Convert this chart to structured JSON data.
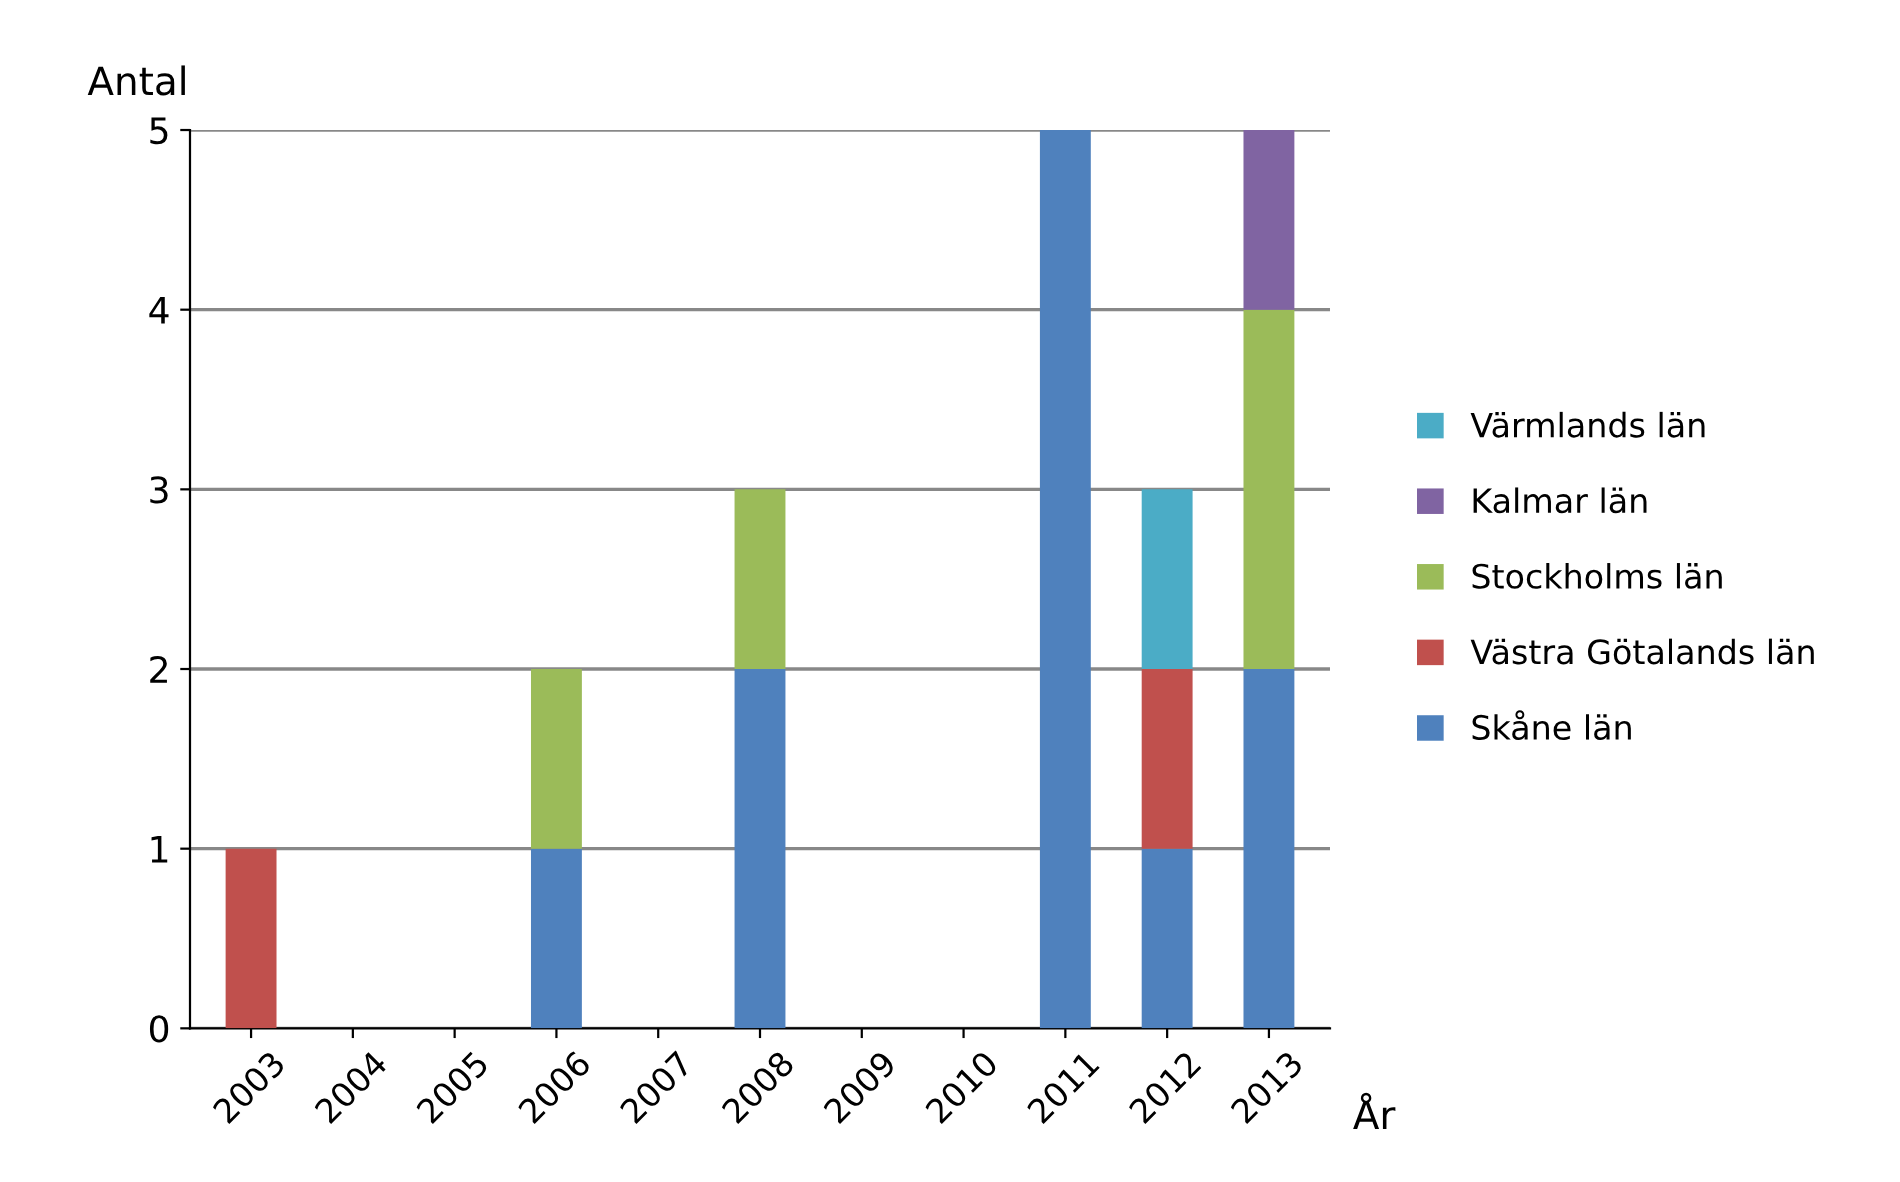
{
  "chart_data": {
    "type": "bar",
    "stacked": true,
    "xlabel": "År",
    "ylabel": "Antal",
    "categories": [
      "2003",
      "2004",
      "2005",
      "2006",
      "2007",
      "2008",
      "2009",
      "2010",
      "2011",
      "2012",
      "2013"
    ],
    "series": [
      {
        "name": "Skåne län",
        "color": "#4f81bd",
        "values": [
          0,
          0,
          0,
          1,
          0,
          2,
          0,
          0,
          5,
          1,
          2
        ]
      },
      {
        "name": "Västra Götalands län",
        "color": "#c0504d",
        "values": [
          1,
          0,
          0,
          0,
          0,
          0,
          0,
          0,
          0,
          1,
          0
        ]
      },
      {
        "name": "Stockholms län",
        "color": "#9bbb59",
        "values": [
          0,
          0,
          0,
          1,
          0,
          1,
          0,
          0,
          0,
          0,
          2
        ]
      },
      {
        "name": "Kalmar län",
        "color": "#8064a2",
        "values": [
          0,
          0,
          0,
          0,
          0,
          0,
          0,
          0,
          0,
          0,
          1
        ]
      },
      {
        "name": "Värmlands län",
        "color": "#4bacc6",
        "values": [
          0,
          0,
          0,
          0,
          0,
          0,
          0,
          0,
          0,
          1,
          0
        ]
      }
    ],
    "ylim": [
      0,
      5
    ],
    "yticks": [
      0,
      1,
      2,
      3,
      4,
      5
    ],
    "grid": "y",
    "legend": "right"
  }
}
